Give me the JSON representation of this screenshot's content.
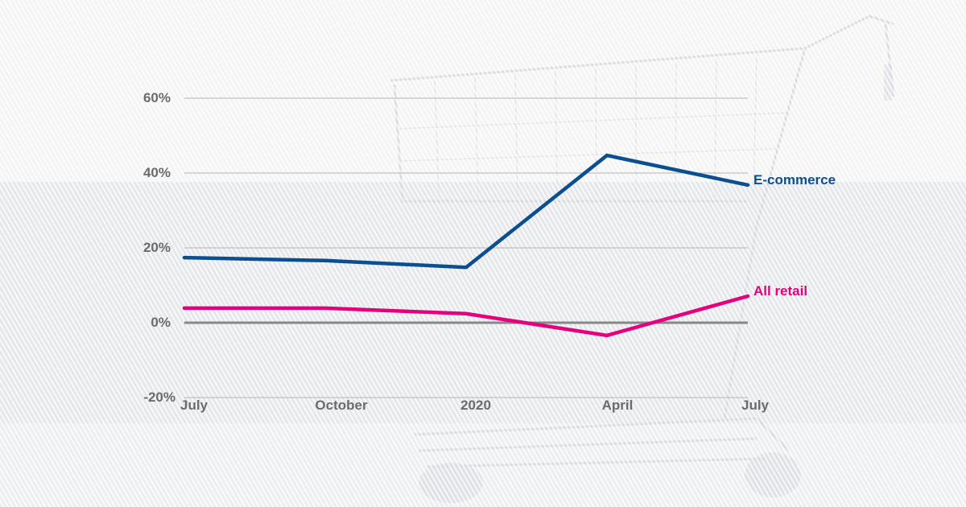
{
  "chart_data": {
    "type": "line",
    "title": "",
    "xlabel": "",
    "ylabel": "",
    "categories": [
      "July",
      "October",
      "2020",
      "April",
      "July"
    ],
    "series": [
      {
        "name": "E-commerce",
        "color": "#0b4f8f",
        "values": [
          17.4,
          16.6,
          14.8,
          44.7,
          36.8
        ]
      },
      {
        "name": "All retail",
        "color": "#e5007e",
        "values": [
          3.9,
          3.9,
          2.4,
          -3.4,
          7.1
        ]
      }
    ],
    "ylim": [
      -20,
      60
    ],
    "yticks": [
      60,
      40,
      20,
      0,
      -20
    ],
    "ytick_labels": [
      "60%",
      "40%",
      "20%",
      "0%",
      "-20%"
    ],
    "grid": true,
    "legend_position": "inline-right"
  },
  "axis": {
    "y_labels": [
      "60%",
      "40%",
      "20%",
      "0%",
      "-20%"
    ],
    "x_labels": [
      "July",
      "October",
      "2020",
      "April",
      "July"
    ]
  },
  "labels": {
    "ecommerce": "E-commerce",
    "all_retail": "All retail"
  },
  "colors": {
    "ecommerce": "#0b4f8f",
    "all_retail": "#e5007e",
    "gridline": "#b5b5b5",
    "zero_line": "#888888",
    "tick_text": "#6b6b6b"
  }
}
